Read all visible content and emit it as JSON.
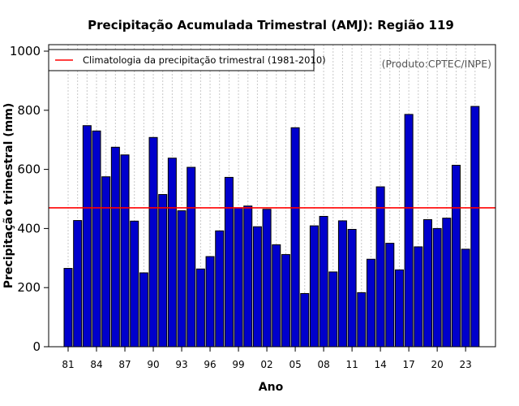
{
  "chart_data": {
    "type": "bar",
    "title": "Precipitação Acumulada Trimestral (AMJ): Região 119",
    "xlabel": "Ano",
    "ylabel": "Precipitação trimestral (mm)",
    "ylim": [
      0,
      1000
    ],
    "yticks": [
      0,
      200,
      400,
      600,
      800,
      1000
    ],
    "grid": "vertical dotted",
    "categories": [
      "81",
      "82",
      "83",
      "84",
      "85",
      "86",
      "87",
      "88",
      "89",
      "90",
      "91",
      "92",
      "93",
      "94",
      "95",
      "96",
      "97",
      "98",
      "99",
      "00",
      "01",
      "02",
      "03",
      "04",
      "05",
      "06",
      "07",
      "08",
      "09",
      "10",
      "11",
      "12",
      "13",
      "14",
      "15",
      "16",
      "17",
      "18",
      "19",
      "20",
      "21",
      "22",
      "23",
      "24"
    ],
    "xtick_labels": [
      "81",
      "84",
      "87",
      "90",
      "93",
      "96",
      "99",
      "02",
      "05",
      "08",
      "11",
      "14",
      "17",
      "20",
      "23"
    ],
    "values": [
      265,
      427,
      748,
      730,
      575,
      675,
      649,
      425,
      250,
      708,
      515,
      638,
      460,
      607,
      263,
      305,
      392,
      573,
      470,
      476,
      406,
      465,
      345,
      312,
      741,
      180,
      409,
      441,
      253,
      426,
      397,
      183,
      296,
      541,
      350,
      260,
      786,
      338,
      430,
      400,
      435,
      614,
      330,
      813
    ],
    "climatology": 470,
    "legend": {
      "position": "top-left",
      "entries": [
        "Climatologia da precipitação trimestral (1981-2010)"
      ]
    },
    "annotation": "(Produto:CPTEC/INPE)",
    "colors": {
      "bar": "#0000cc",
      "bar_edge": "#000000",
      "climatology_line": "#ff0000",
      "grid": "#c8c8c8",
      "annotation": "#555555"
    }
  }
}
